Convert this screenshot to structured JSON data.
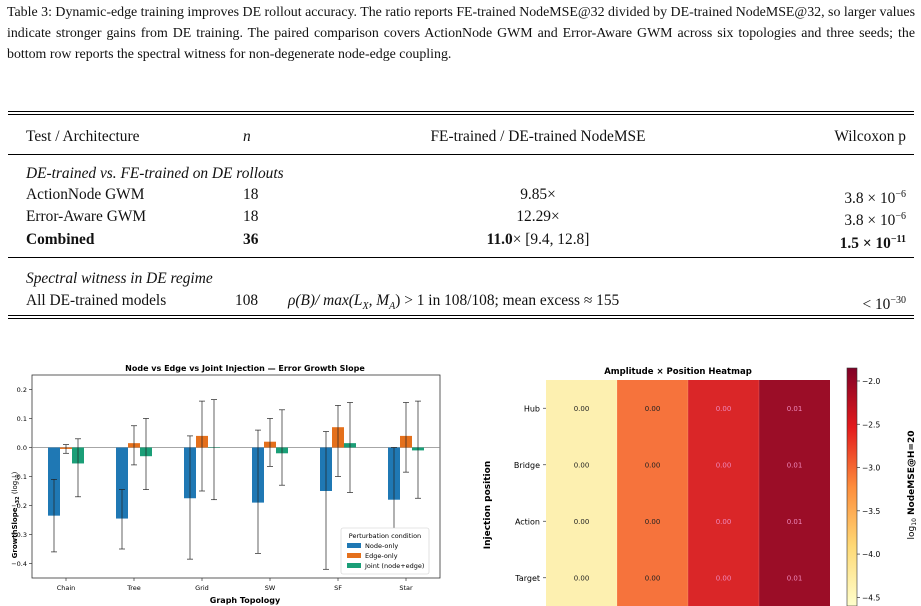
{
  "caption": "Table 3: Dynamic-edge training improves DE rollout accuracy. The ratio reports FE-trained NodeMSE@32 divided by DE-trained NodeMSE@32, so larger values indicate stronger gains from DE training. The paired comparison covers ActionNode GWM and Error-Aware GWM across six topologies and three seeds; the bottom row reports the spectral witness for non-degenerate node-edge coupling.",
  "table": {
    "headers": {
      "test": "Test / Architecture",
      "n": "n",
      "ratio": "FE-trained / DE-trained NodeMSE",
      "p": "Wilcoxon p"
    },
    "section1": "DE-trained vs. FE-trained on DE rollouts",
    "rows": [
      {
        "test": "ActionNode GWM",
        "n": "18",
        "ratio": "9.85×",
        "p_mant": "3.8 × 10",
        "p_exp": "−6"
      },
      {
        "test": "Error-Aware GWM",
        "n": "18",
        "ratio": "12.29×",
        "p_mant": "3.8 × 10",
        "p_exp": "−6"
      }
    ],
    "combined": {
      "test": "Combined",
      "n": "36",
      "ratio": "11.0",
      "ratio_rest": "× [9.4, 12.8]",
      "p_mant": "1.5 × 10",
      "p_exp": "−11"
    },
    "section2": "Spectral witness in DE regime",
    "spectral": {
      "test": "All DE-trained models",
      "n": "108",
      "a": "ρ(B)/ max(L",
      "sx": "X",
      "b": ", M",
      "sa": "A",
      "c": ") > 1 in 108/108; mean excess ≈ 155",
      "p_mant": "< 10",
      "p_exp": "−30"
    }
  },
  "chart_data": [
    {
      "type": "bar",
      "title": "Node vs Edge vs Joint Injection — Error Growth Slope",
      "xlabel": "Graph Topology",
      "ylabel": "GrowthSlope",
      "ylabel_sub": "→32",
      "ylabel_unit": "(log",
      "ylabel_unit_sub": "10",
      "ylabel_unit_end": ")",
      "categories": [
        "Chain",
        "Tree",
        "Grid",
        "SW",
        "SF",
        "Star"
      ],
      "ylim": [
        -0.45,
        0.25
      ],
      "yticks": [
        "−0.4",
        "−0.3",
        "−0.2",
        "−0.1",
        "0.0",
        "0.1",
        "0.2"
      ],
      "ytick_values": [
        -0.4,
        -0.3,
        -0.2,
        -0.1,
        0.0,
        0.1,
        0.2
      ],
      "legend_title": "Perturbation condition",
      "legend_position": "lower-right",
      "series": [
        {
          "name": "Node-only",
          "color": "#1f78b4",
          "values": [
            -0.235,
            -0.245,
            -0.175,
            -0.19,
            -0.15,
            -0.18
          ],
          "err_low": [
            -0.36,
            -0.35,
            -0.385,
            -0.365,
            -0.42,
            -0.375
          ],
          "err_high": [
            -0.11,
            -0.145,
            0.04,
            0.06,
            0.055,
            0.0
          ]
        },
        {
          "name": "Edge-only",
          "color": "#e4701c",
          "values": [
            -0.005,
            0.015,
            0.04,
            0.02,
            0.07,
            0.04
          ],
          "err_low": [
            -0.02,
            -0.06,
            -0.15,
            -0.065,
            -0.1,
            -0.085
          ],
          "err_high": [
            0.01,
            0.075,
            0.16,
            0.1,
            0.145,
            0.155
          ]
        },
        {
          "name": "Joint (node+edge)",
          "color": "#1a9e77",
          "values": [
            -0.055,
            -0.03,
            0.0,
            -0.02,
            0.015,
            -0.01
          ],
          "err_low": [
            -0.17,
            -0.145,
            -0.18,
            -0.13,
            -0.155,
            -0.175
          ],
          "err_high": [
            0.03,
            0.1,
            0.165,
            0.13,
            0.155,
            0.16
          ]
        }
      ]
    },
    {
      "type": "heatmap",
      "title": "Amplitude × Position Heatmap",
      "ylabel": "Injection position",
      "rows": [
        "Hub",
        "Bridge",
        "Action",
        "Target"
      ],
      "cell_labels": [
        [
          "0.00",
          "0.00",
          "0.00",
          "0.01"
        ],
        [
          "0.00",
          "0.00",
          "0.00",
          "0.01"
        ],
        [
          "0.00",
          "0.00",
          "0.00",
          "0.01"
        ],
        [
          "0.00",
          "0.00",
          "0.00",
          "0.01"
        ]
      ],
      "column_colors": [
        "#fdf0b0",
        "#f6733c",
        "#da2628",
        "#9b0d27"
      ],
      "colorbar_label_pre": "log",
      "colorbar_label_sub": "10",
      "colorbar_label_post": " NodeMSE@H=20",
      "colorbar_ticks": [
        "−2.0",
        "−2.5",
        "−3.0",
        "−3.5",
        "−4.0",
        "−4.5"
      ],
      "colorbar_tick_values": [
        -2.0,
        -2.5,
        -3.0,
        -3.5,
        -4.0,
        -4.5
      ],
      "colorbar_range": [
        -4.6,
        -1.85
      ]
    }
  ]
}
